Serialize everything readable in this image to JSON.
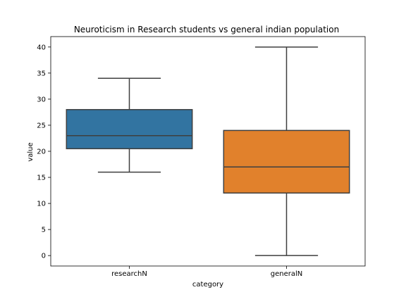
{
  "chart_data": {
    "type": "box",
    "title": "Neuroticism in Research students vs general indian population",
    "xlabel": "category",
    "ylabel": "value",
    "ylim": [
      -2,
      42
    ],
    "yticks": [
      0,
      5,
      10,
      15,
      20,
      25,
      30,
      35,
      40
    ],
    "categories": [
      "researchN",
      "generalN"
    ],
    "boxes": [
      {
        "category": "researchN",
        "min": 16,
        "q1": 20.5,
        "median": 23,
        "q3": 28,
        "max": 34,
        "color": "#3274a1"
      },
      {
        "category": "generalN",
        "min": 0,
        "q1": 12,
        "median": 17,
        "q3": 24,
        "max": 40,
        "color": "#e1812c"
      }
    ],
    "grid": false,
    "legend": "none"
  }
}
